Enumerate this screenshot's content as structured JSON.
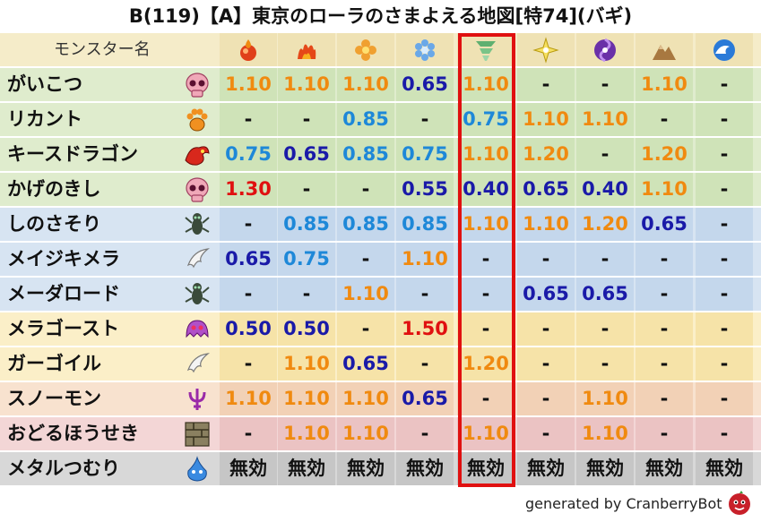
{
  "title": "B(119)【A】東京のローラのさまよえる地図[特74](バギ)",
  "header_label": "モンスター名",
  "footer": "generated by CranberryBot",
  "colors": {
    "val_0_40_0_65": "#1a1aa8",
    "val_0_75_0_85": "#1e88d8",
    "val_1_10_1_20": "#f08a10",
    "val_1_30_plus": "#e01010",
    "muteki": "#111111",
    "highlight": "#e01010"
  },
  "chart_data": {
    "type": "table",
    "columns": [
      "メラ",
      "ギラ",
      "イオ",
      "ヒャド",
      "バギ",
      "デイン",
      "ドルマ",
      "ジバリア",
      "バシルーラ"
    ],
    "column_icons": [
      "mera-icon",
      "gira-icon",
      "io-icon",
      "hyado-icon",
      "bagi-icon",
      "dein-icon",
      "doruma-icon",
      "jibaria-icon",
      "wave-icon"
    ],
    "highlight_column": "バギ",
    "rows": [
      {
        "name": "がいこつ",
        "icon": "skull-icon",
        "band": "green",
        "values": [
          "1.10",
          "1.10",
          "1.10",
          "0.65",
          "1.10",
          "-",
          "-",
          "1.10",
          "-"
        ]
      },
      {
        "name": "リカント",
        "icon": "paw-icon",
        "band": "green",
        "values": [
          "-",
          "-",
          "0.85",
          "-",
          "0.75",
          "1.10",
          "1.10",
          "-",
          "-"
        ]
      },
      {
        "name": "キースドラゴン",
        "icon": "dragon-icon",
        "band": "green",
        "values": [
          "0.75",
          "0.65",
          "0.85",
          "0.75",
          "1.10",
          "1.20",
          "-",
          "1.20",
          "-"
        ]
      },
      {
        "name": "かげのきし",
        "icon": "skull-icon",
        "band": "green",
        "values": [
          "1.30",
          "-",
          "-",
          "0.55",
          "0.40",
          "0.65",
          "0.40",
          "1.10",
          "-"
        ]
      },
      {
        "name": "しのさそり",
        "icon": "insect-icon",
        "band": "blue",
        "values": [
          "-",
          "0.85",
          "0.85",
          "0.85",
          "1.10",
          "1.10",
          "1.20",
          "0.65",
          "-"
        ]
      },
      {
        "name": "メイジキメラ",
        "icon": "wing-icon",
        "band": "blue",
        "values": [
          "0.65",
          "0.75",
          "-",
          "1.10",
          "-",
          "-",
          "-",
          "-",
          "-"
        ]
      },
      {
        "name": "メーダロード",
        "icon": "insect-icon",
        "band": "blue",
        "values": [
          "-",
          "-",
          "1.10",
          "-",
          "-",
          "0.65",
          "0.65",
          "-",
          "-"
        ]
      },
      {
        "name": "メラゴースト",
        "icon": "ghost-icon",
        "band": "yellow",
        "values": [
          "0.50",
          "0.50",
          "-",
          "1.50",
          "-",
          "-",
          "-",
          "-",
          "-"
        ]
      },
      {
        "name": "ガーゴイル",
        "icon": "wing-icon",
        "band": "yellow",
        "values": [
          "-",
          "1.10",
          "0.65",
          "-",
          "1.20",
          "-",
          "-",
          "-",
          "-"
        ]
      },
      {
        "name": "スノーモン",
        "icon": "trident-icon",
        "band": "peach",
        "values": [
          "1.10",
          "1.10",
          "1.10",
          "0.65",
          "-",
          "-",
          "1.10",
          "-",
          "-"
        ]
      },
      {
        "name": "おどるほうせき",
        "icon": "brick-icon",
        "band": "pink",
        "values": [
          "-",
          "1.10",
          "1.10",
          "-",
          "1.10",
          "-",
          "1.10",
          "-",
          "-"
        ]
      },
      {
        "name": "メタルつむり",
        "icon": "slime-icon",
        "band": "gray",
        "values": [
          "無効",
          "無効",
          "無効",
          "無効",
          "無効",
          "無効",
          "無効",
          "無効",
          "無効"
        ]
      }
    ]
  }
}
